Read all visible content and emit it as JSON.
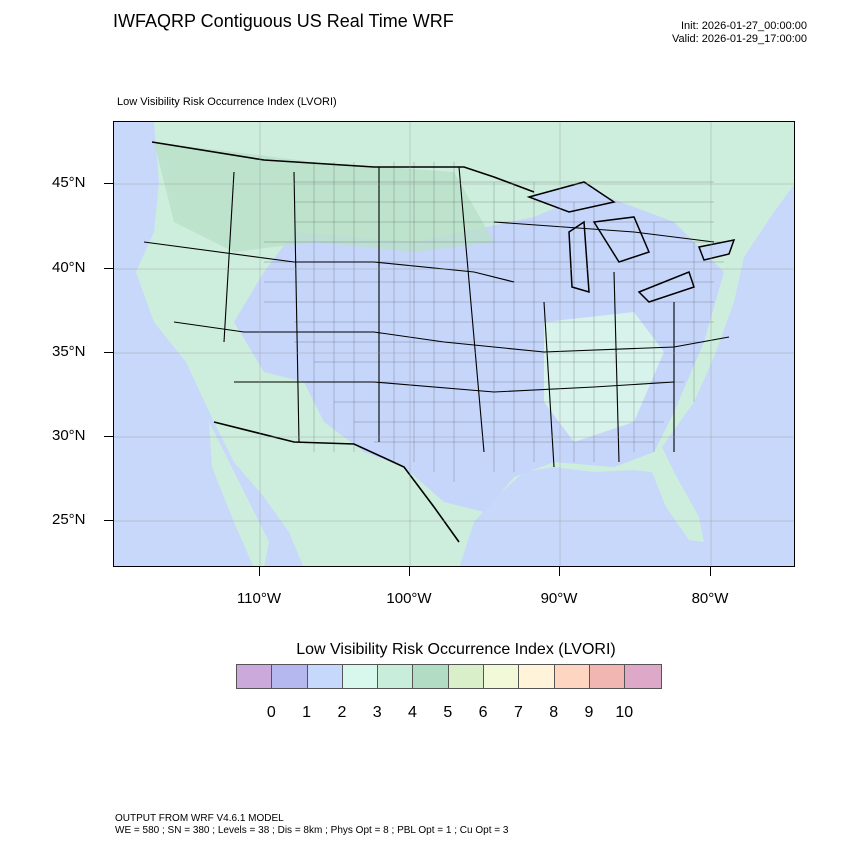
{
  "header": {
    "title": "IWFAQRP Contiguous US Real Time WRF",
    "init": "Init: 2026-01-27_00:00:00",
    "valid": "Valid: 2026-01-29_17:00:00",
    "subtitle": "Low Visibility Risk Occurrence Index   (LVORI)"
  },
  "map": {
    "lat_labels": [
      "45°N",
      "40°N",
      "35°N",
      "30°N",
      "25°N"
    ],
    "lon_labels": [
      "110°W",
      "100°W",
      "90°W",
      "80°W"
    ],
    "colors": {
      "ocean": "#c8d8fb",
      "land": "#cdeedd",
      "blue_zone": "#c5d3fb",
      "green_zone": "#b4dcc4",
      "border": "#000000"
    }
  },
  "colorbar": {
    "title": "Low Visibility Risk Occurrence Index  (LVORI)",
    "colors": [
      "#cbaadb",
      "#b5b8ee",
      "#c6d8fb",
      "#d8f8ee",
      "#c8edda",
      "#b2dcc3",
      "#d9efc9",
      "#f1f9d9",
      "#fff3d9",
      "#fed5c1",
      "#f1b6b1",
      "#dea9c8"
    ],
    "labels": [
      "0",
      "1",
      "2",
      "3",
      "4",
      "5",
      "6",
      "7",
      "8",
      "9",
      "10"
    ]
  },
  "footer": {
    "line1": "OUTPUT FROM WRF V4.6.1 MODEL",
    "line2": "WE = 580 ; SN = 380 ; Levels = 38 ; Dis = 8km ; Phys Opt = 8 ; PBL Opt = 1 ; Cu Opt = 3"
  }
}
